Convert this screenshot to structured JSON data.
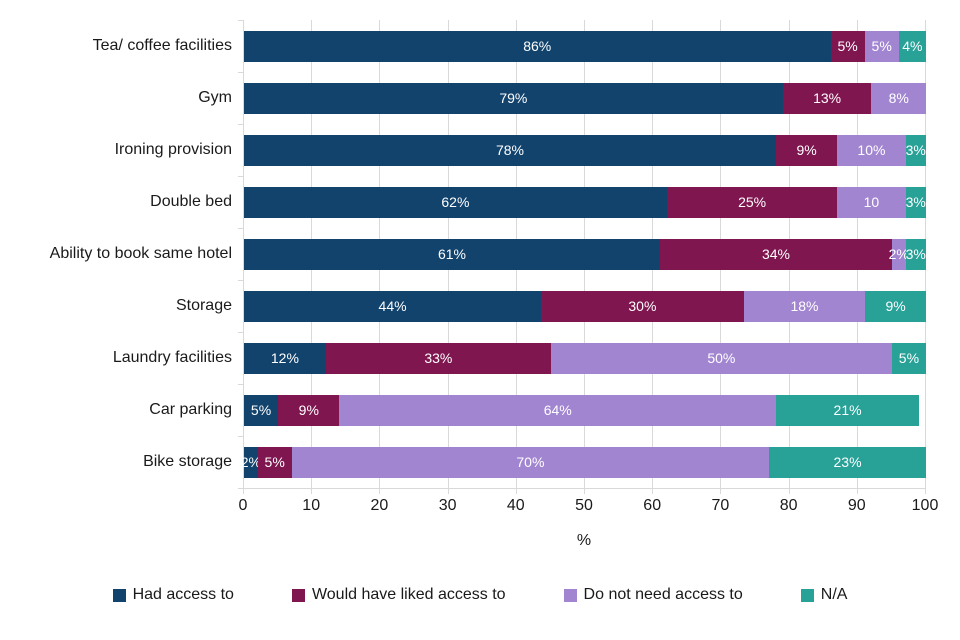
{
  "chart_data": {
    "type": "bar",
    "orientation": "horizontal",
    "stacked": true,
    "title": "",
    "xlabel": "%",
    "xlim": [
      0,
      100
    ],
    "x_ticks": [
      0,
      10,
      20,
      30,
      40,
      50,
      60,
      70,
      80,
      90,
      100
    ],
    "grid": true,
    "legend_position": "bottom",
    "categories": [
      "Tea/ coffee facilities",
      "Gym",
      "Ironing provision",
      "Double bed",
      "Ability to book same hotel",
      "Storage",
      "Laundry facilities",
      "Car parking",
      "Bike storage"
    ],
    "series": [
      {
        "name": "Had access to",
        "color": "#12436D",
        "values": [
          86,
          79,
          78,
          62,
          61,
          44,
          12,
          5,
          2
        ],
        "labels": [
          "86%",
          "79%",
          "78%",
          "62%",
          "61%",
          "44%",
          "12%",
          "5%",
          "2%"
        ]
      },
      {
        "name": "Would have liked access to",
        "color": "#801650",
        "values": [
          5,
          13,
          9,
          25,
          34,
          30,
          33,
          9,
          5
        ],
        "labels": [
          "5%",
          "13%",
          "9%",
          "25%",
          "34%",
          "30%",
          "33%",
          "9%",
          "5%"
        ]
      },
      {
        "name": "Do not need access to",
        "color": "#A285D1",
        "values": [
          5,
          8,
          10,
          10,
          2,
          18,
          50,
          64,
          70
        ],
        "labels": [
          "5%",
          "8%",
          "10%",
          "10",
          "2%",
          "18%",
          "50%",
          "64%",
          "70%"
        ]
      },
      {
        "name": "N/A",
        "color": "#28A197",
        "values": [
          4,
          0,
          3,
          3,
          3,
          9,
          5,
          21,
          23
        ],
        "labels": [
          "4%",
          "",
          "3%",
          "3%",
          "3%",
          "9%",
          "5%",
          "21%",
          "23%"
        ]
      }
    ]
  },
  "style": {
    "grid_color": "#D9D9D9",
    "axis_color": "#D9D9D9",
    "bar_label_color": "#FFFFFF",
    "text_color": "#1A1A1A"
  }
}
